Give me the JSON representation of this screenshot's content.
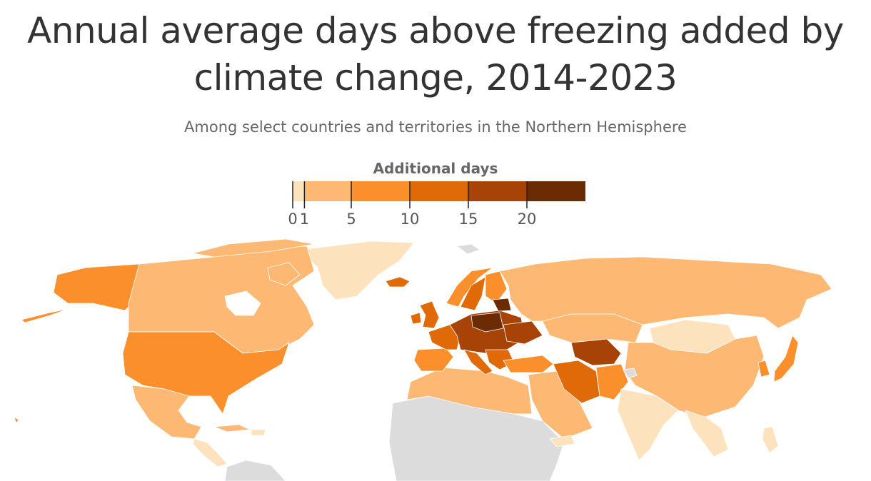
{
  "title_line1": "Annual average days above freezing added by",
  "title_line2": "climate change, 2014-2023",
  "subtitle": "Among select countries and territories in the Northern Hemisphere",
  "legend": {
    "title": "Additional days",
    "bins": [
      {
        "from": 0,
        "to": 1,
        "color": "#fde3bd"
      },
      {
        "from": 1,
        "to": 5,
        "color": "#fdb873"
      },
      {
        "from": 5,
        "to": 10,
        "color": "#fb8f2c"
      },
      {
        "from": 10,
        "to": 15,
        "color": "#e06a07"
      },
      {
        "from": 15,
        "to": 20,
        "color": "#a74306"
      },
      {
        "from": 20,
        "to": 25,
        "color": "#6b2b03"
      }
    ],
    "ticks": [
      0,
      1,
      5,
      10,
      15,
      20
    ]
  },
  "colors": {
    "no_data": "#dcdcdc",
    "border": "#ffffff",
    "text_dark": "#333333",
    "text_muted": "#666666"
  }
}
